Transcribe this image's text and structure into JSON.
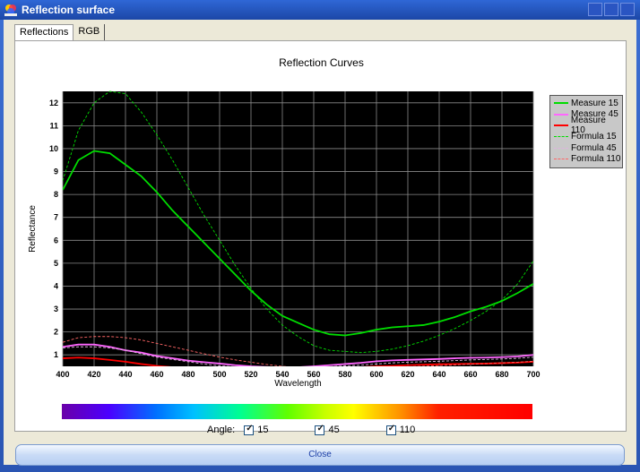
{
  "window": {
    "title": "Reflection surface",
    "icon": "app-palette-icon"
  },
  "tabs": [
    {
      "label": "Reflections",
      "active": true
    },
    {
      "label": "RGB",
      "active": false
    }
  ],
  "chart_data": {
    "type": "line",
    "title": "Reflection Curves",
    "xlabel": "Wavelength",
    "ylabel": "Reflectance",
    "xlim": [
      400,
      700
    ],
    "ylim": [
      0.5,
      12.5
    ],
    "xticks": [
      400,
      420,
      440,
      460,
      480,
      500,
      520,
      540,
      560,
      580,
      600,
      620,
      640,
      660,
      680,
      700
    ],
    "yticks": [
      1,
      2,
      3,
      4,
      5,
      6,
      7,
      8,
      9,
      10,
      11,
      12
    ],
    "grid": true,
    "background": "#000000",
    "legend_position": "right",
    "x": [
      400,
      410,
      420,
      430,
      440,
      450,
      460,
      470,
      480,
      490,
      500,
      510,
      520,
      530,
      540,
      550,
      560,
      570,
      580,
      590,
      600,
      610,
      620,
      630,
      640,
      650,
      660,
      670,
      680,
      690,
      700
    ],
    "series": [
      {
        "name": "Measure 15",
        "color": "#00dd00",
        "style": "solid",
        "values": [
          8.2,
          9.5,
          9.9,
          9.8,
          9.3,
          8.8,
          8.1,
          7.3,
          6.6,
          5.9,
          5.2,
          4.5,
          3.8,
          3.2,
          2.7,
          2.4,
          2.1,
          1.9,
          1.85,
          1.95,
          2.1,
          2.2,
          2.25,
          2.3,
          2.45,
          2.65,
          2.9,
          3.1,
          3.35,
          3.7,
          4.1
        ]
      },
      {
        "name": "Measure 45",
        "color": "#ff66ff",
        "style": "solid",
        "values": [
          1.35,
          1.45,
          1.45,
          1.35,
          1.2,
          1.1,
          0.95,
          0.85,
          0.75,
          0.68,
          0.62,
          0.55,
          0.5,
          0.47,
          0.45,
          0.46,
          0.5,
          0.55,
          0.6,
          0.65,
          0.72,
          0.76,
          0.78,
          0.8,
          0.82,
          0.85,
          0.87,
          0.88,
          0.9,
          0.93,
          1.0
        ]
      },
      {
        "name": "Measure 110",
        "color": "#ff0000",
        "style": "solid",
        "values": [
          0.85,
          0.88,
          0.85,
          0.78,
          0.7,
          0.6,
          0.52,
          0.46,
          0.42,
          0.38,
          0.36,
          0.35,
          0.35,
          0.35,
          0.35,
          0.36,
          0.38,
          0.4,
          0.43,
          0.46,
          0.5,
          0.52,
          0.55,
          0.57,
          0.59,
          0.6,
          0.61,
          0.62,
          0.64,
          0.66,
          0.7
        ]
      },
      {
        "name": "Formula 15",
        "color": "#00dd00",
        "style": "dashed",
        "values": [
          8.6,
          10.8,
          12.0,
          12.5,
          12.4,
          11.6,
          10.6,
          9.5,
          8.3,
          7.1,
          6.0,
          4.9,
          3.9,
          3.0,
          2.3,
          1.8,
          1.4,
          1.2,
          1.15,
          1.1,
          1.15,
          1.25,
          1.4,
          1.6,
          1.85,
          2.15,
          2.5,
          2.9,
          3.4,
          4.1,
          5.1
        ]
      },
      {
        "name": "Formula 45",
        "color": "#ddb4dd",
        "style": "dashed",
        "values": [
          1.3,
          1.35,
          1.35,
          1.3,
          1.2,
          1.05,
          0.9,
          0.8,
          0.7,
          0.6,
          0.52,
          0.48,
          0.45,
          0.43,
          0.42,
          0.43,
          0.45,
          0.48,
          0.52,
          0.55,
          0.6,
          0.65,
          0.68,
          0.7,
          0.72,
          0.75,
          0.78,
          0.8,
          0.82,
          0.85,
          0.9
        ]
      },
      {
        "name": "Formula 110",
        "color": "#ff6666",
        "style": "dashed",
        "values": [
          1.55,
          1.75,
          1.8,
          1.8,
          1.75,
          1.65,
          1.5,
          1.35,
          1.2,
          1.05,
          0.9,
          0.78,
          0.68,
          0.58,
          0.5,
          0.44,
          0.4,
          0.38,
          0.38,
          0.4,
          0.42,
          0.45,
          0.48,
          0.5,
          0.53,
          0.56,
          0.6,
          0.62,
          0.65,
          0.68,
          0.72
        ]
      }
    ]
  },
  "angles": {
    "label": "Angle:",
    "items": [
      {
        "value": "15",
        "checked": true
      },
      {
        "value": "45",
        "checked": true
      },
      {
        "value": "110",
        "checked": true
      }
    ]
  },
  "close_label": "Close"
}
